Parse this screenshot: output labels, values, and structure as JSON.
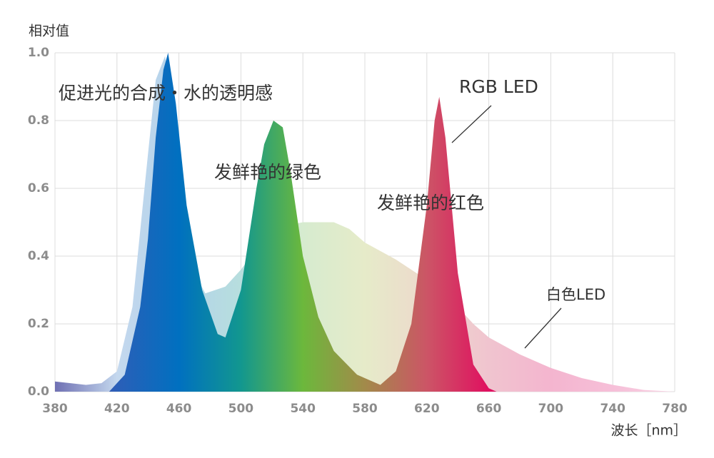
{
  "chart_data": {
    "type": "area",
    "y_label": "相对值",
    "x_label": "波长［nm］",
    "xlim": [
      380,
      780
    ],
    "ylim": [
      0,
      1
    ],
    "xticks": [
      380,
      420,
      460,
      500,
      540,
      580,
      620,
      660,
      700,
      740,
      780
    ],
    "yticks": [
      {
        "value": 0,
        "label": "0.0"
      },
      0.2,
      0.4,
      0.6,
      0.8,
      {
        "value": 1,
        "label": "1.0"
      }
    ],
    "grid": true,
    "annotations": [
      "促进光的合成・水的透明感",
      "发鲜艳的绿色",
      "发鲜艳的红色"
    ],
    "series": [
      {
        "name": "白色LED",
        "color": [
          "#6f70b3",
          "#c4d8ee",
          "#b3d3ea",
          "#b7dede",
          "#d6ebcf",
          "#e6ebc9",
          "#edd9cc",
          "#f0c4cf",
          "#f4b5cf",
          "#f6bfd8",
          "#f8d4e4"
        ],
        "x": [
          380,
          390,
          400,
          410,
          420,
          430,
          440,
          445,
          451,
          456,
          460,
          470,
          477,
          490,
          500,
          510,
          520,
          530,
          540,
          550,
          560,
          570,
          580,
          600,
          620,
          640,
          650,
          660,
          680,
          700,
          720,
          740,
          760,
          780
        ],
        "values": [
          0.03,
          0.025,
          0.02,
          0.025,
          0.06,
          0.25,
          0.7,
          0.92,
          0.99,
          0.85,
          0.62,
          0.35,
          0.29,
          0.31,
          0.36,
          0.42,
          0.46,
          0.49,
          0.5,
          0.5,
          0.5,
          0.48,
          0.44,
          0.39,
          0.33,
          0.25,
          0.2,
          0.16,
          0.11,
          0.07,
          0.04,
          0.02,
          0.005,
          0
        ]
      },
      {
        "name": "RGB LED",
        "color": [
          "#5a4fa8",
          "#2b5fb8",
          "#0070c0",
          "#12978f",
          "#6cb83c",
          "#a28a4a",
          "#cc5566",
          "#e01060",
          "#e01060",
          "#e01060",
          "#e01060"
        ],
        "x": [
          415,
          425,
          435,
          440,
          445,
          450,
          453,
          458,
          465,
          475,
          485,
          490,
          500,
          510,
          515,
          521,
          527,
          532,
          540,
          550,
          560,
          575,
          590,
          600,
          610,
          620,
          625,
          628,
          632,
          640,
          650,
          660,
          665
        ],
        "values": [
          0,
          0.05,
          0.25,
          0.45,
          0.75,
          0.95,
          1,
          0.85,
          0.55,
          0.3,
          0.17,
          0.16,
          0.3,
          0.6,
          0.73,
          0.8,
          0.78,
          0.65,
          0.4,
          0.22,
          0.12,
          0.05,
          0.02,
          0.06,
          0.2,
          0.55,
          0.8,
          0.87,
          0.75,
          0.35,
          0.08,
          0.01,
          0
        ]
      }
    ]
  }
}
